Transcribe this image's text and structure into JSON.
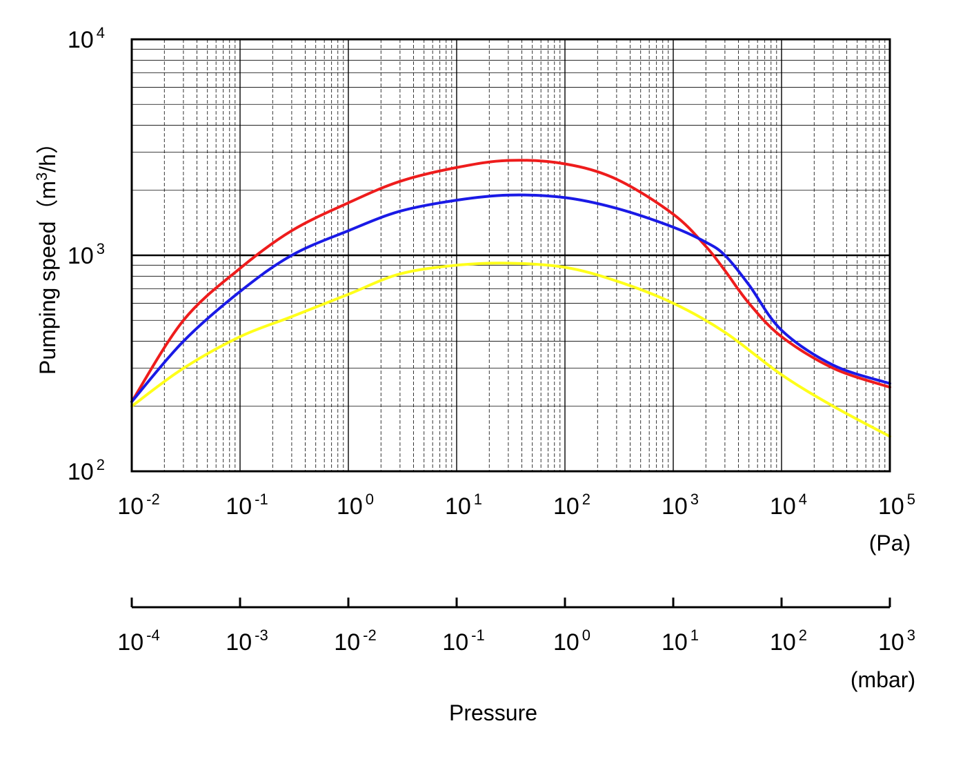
{
  "chart_data": {
    "type": "line",
    "title": "",
    "ylabel": {
      "pre": "Pumping speed（m",
      "sup": "3",
      "post": "/h）"
    },
    "xlabel": "Pressure",
    "x_scale": "log",
    "y_scale": "log",
    "xlim_pa": [
      0.01,
      100000
    ],
    "ylim": [
      100,
      10000
    ],
    "grid": true,
    "y_ticks": [
      {
        "base": "10",
        "exp": "4",
        "value": 10000
      },
      {
        "base": "10",
        "exp": "3",
        "value": 1000
      },
      {
        "base": "10",
        "exp": "2",
        "value": 100
      }
    ],
    "x_ticks_pa": [
      {
        "base": "10",
        "exp": "-2",
        "value": 0.01
      },
      {
        "base": "10",
        "exp": "-1",
        "value": 0.1
      },
      {
        "base": "10",
        "exp": "0",
        "value": 1
      },
      {
        "base": "10",
        "exp": "1",
        "value": 10
      },
      {
        "base": "10",
        "exp": "2",
        "value": 100
      },
      {
        "base": "10",
        "exp": "3",
        "value": 1000
      },
      {
        "base": "10",
        "exp": "4",
        "value": 10000
      },
      {
        "base": "10",
        "exp": "5",
        "value": 100000
      }
    ],
    "x_ticks_mbar": [
      {
        "base": "10",
        "exp": "-4",
        "value": 0.0001
      },
      {
        "base": "10",
        "exp": "-3",
        "value": 0.001
      },
      {
        "base": "10",
        "exp": "-2",
        "value": 0.01
      },
      {
        "base": "10",
        "exp": "-1",
        "value": 0.1
      },
      {
        "base": "10",
        "exp": "0",
        "value": 1
      },
      {
        "base": "10",
        "exp": "1",
        "value": 10
      },
      {
        "base": "10",
        "exp": "2",
        "value": 100
      },
      {
        "base": "10",
        "exp": "3",
        "value": 1000
      }
    ],
    "pa_unit": "(Pa)",
    "mbar_unit": "(mbar)",
    "series": [
      {
        "color": "#ee1c1c",
        "x": [
          0.01,
          0.03,
          0.1,
          0.3,
          1,
          3,
          10,
          30,
          100,
          300,
          1000,
          2000,
          3000,
          5000,
          10000,
          30000,
          100000
        ],
        "y": [
          210,
          500,
          870,
          1300,
          1750,
          2200,
          2550,
          2750,
          2650,
          2250,
          1550,
          1100,
          850,
          600,
          420,
          300,
          245
        ]
      },
      {
        "color": "#1a1ae6",
        "x": [
          0.01,
          0.03,
          0.1,
          0.3,
          1,
          3,
          10,
          30,
          100,
          300,
          1000,
          2000,
          3000,
          5000,
          10000,
          30000,
          100000
        ],
        "y": [
          210,
          400,
          680,
          1000,
          1300,
          1600,
          1800,
          1900,
          1850,
          1650,
          1350,
          1150,
          1000,
          730,
          450,
          310,
          255
        ]
      },
      {
        "color": "#ffff1a",
        "x": [
          0.01,
          0.03,
          0.1,
          0.3,
          1,
          3,
          10,
          30,
          100,
          300,
          1000,
          3000,
          10000,
          30000,
          100000
        ],
        "y": [
          200,
          300,
          420,
          520,
          660,
          820,
          900,
          920,
          880,
          760,
          600,
          440,
          280,
          200,
          145
        ]
      }
    ]
  }
}
